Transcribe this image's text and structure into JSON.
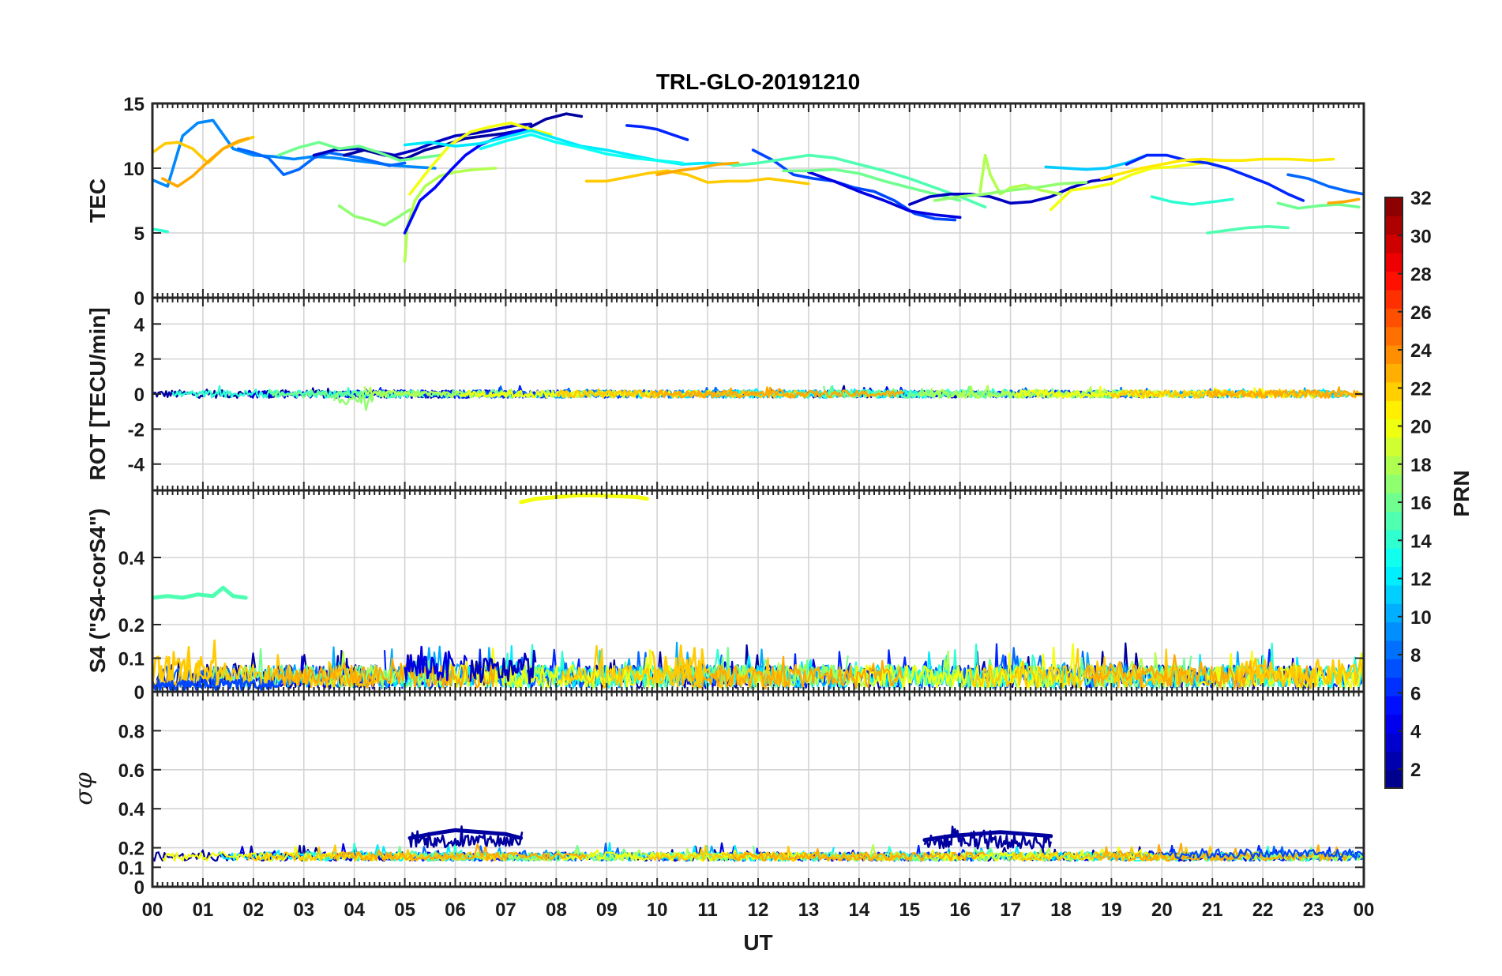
{
  "chart_data": {
    "type": "line",
    "title": "TRL-GLO-20191210",
    "xlabel": "UT",
    "x_range": [
      0,
      24
    ],
    "x_ticks": [
      "00",
      "01",
      "02",
      "03",
      "04",
      "05",
      "06",
      "07",
      "08",
      "09",
      "10",
      "11",
      "12",
      "13",
      "14",
      "15",
      "16",
      "17",
      "18",
      "19",
      "20",
      "21",
      "22",
      "23",
      "00"
    ],
    "grid": true,
    "colorbar": {
      "label": "PRN",
      "range": [
        1,
        32
      ],
      "ticks": [
        "2",
        "4",
        "6",
        "8",
        "10",
        "12",
        "14",
        "16",
        "18",
        "20",
        "22",
        "24",
        "26",
        "28",
        "30",
        "32"
      ],
      "colormap": "jet",
      "placement": "right"
    },
    "panels": [
      {
        "ylabel": "TEC",
        "ylim": [
          0,
          15
        ],
        "yticks": [
          "0",
          "5",
          "10",
          "15"
        ],
        "series": [
          {
            "prn": 9,
            "x": [
              0,
              0.3,
              0.6,
              0.9,
              1.2,
              1.6,
              2.0,
              2.4,
              2.8,
              3.2,
              3.6,
              4.0,
              4.4,
              4.8,
              5.2,
              5.6
            ],
            "values": [
              9.1,
              8.6,
              12.5,
              13.5,
              13.7,
              11.5,
              11.0,
              10.9,
              10.7,
              10.9,
              10.8,
              10.6,
              10.4,
              10.2,
              10.1,
              10.0
            ]
          },
          {
            "prn": 22,
            "x": [
              0,
              0.25,
              0.5,
              0.8,
              1.1,
              1.4,
              1.7,
              2.0
            ],
            "values": [
              11.2,
              11.9,
              12.0,
              11.5,
              10.4,
              11.5,
              12.0,
              12.4
            ]
          },
          {
            "prn": 23,
            "x": [
              0.2,
              0.5,
              0.8,
              1.1,
              1.4,
              1.7,
              1.9
            ],
            "values": [
              9.2,
              8.6,
              9.4,
              10.5,
              11.5,
              12.1,
              12.3
            ]
          },
          {
            "prn": 14,
            "x": [
              0,
              0.15,
              0.3
            ],
            "values": [
              5.3,
              5.2,
              5.1
            ]
          },
          {
            "prn": 8,
            "x": [
              1.7,
              2.0,
              2.3,
              2.6,
              2.9,
              3.2,
              3.5,
              3.8,
              4.1,
              4.4,
              4.7,
              5.0
            ],
            "values": [
              11.5,
              11.2,
              10.8,
              9.5,
              9.9,
              10.8,
              11.2,
              11.0,
              10.8,
              10.5,
              10.2,
              10.4
            ]
          },
          {
            "prn": 3,
            "x": [
              3.2,
              3.6,
              4.0,
              4.4,
              4.8,
              5.2,
              5.6,
              6.0,
              6.4,
              6.8,
              7.2,
              7.5
            ],
            "values": [
              11.0,
              11.4,
              11.5,
              11.3,
              11.0,
              11.4,
              12.0,
              12.5,
              12.7,
              13.0,
              13.3,
              13.4
            ]
          },
          {
            "prn": 2,
            "x": [
              3.8,
              4.2,
              4.6,
              5.0,
              5.4,
              5.8,
              6.2,
              6.6,
              7.0,
              7.4,
              7.8,
              8.2,
              8.5
            ],
            "values": [
              11.0,
              11.4,
              11.0,
              10.7,
              11.4,
              11.8,
              12.3,
              12.5,
              12.7,
              13.0,
              13.8,
              14.2,
              14.0
            ]
          },
          {
            "prn": 16,
            "x": [
              2.5,
              2.9,
              3.3,
              3.7,
              4.1,
              4.5,
              4.9,
              5.3,
              5.7
            ],
            "values": [
              11.0,
              11.6,
              12.0,
              11.5,
              11.7,
              11.2,
              10.6,
              10.8,
              11.0
            ]
          },
          {
            "prn": 17,
            "x": [
              3.7,
              4.0,
              4.3,
              4.6,
              4.9,
              5.1
            ],
            "values": [
              7.1,
              6.3,
              6.0,
              5.6,
              6.3,
              6.8
            ]
          },
          {
            "prn": 18,
            "x": [
              5.0,
              5.05,
              5.2,
              5.4,
              5.7,
              6.0,
              6.4,
              6.8
            ],
            "values": [
              2.8,
              5.5,
              7.5,
              8.6,
              9.4,
              9.7,
              9.9,
              10.0
            ]
          },
          {
            "prn": 5,
            "x": [
              5.0,
              5.3,
              5.6,
              5.9,
              6.2,
              6.5,
              6.8,
              7.1,
              7.4
            ],
            "values": [
              5.0,
              7.5,
              8.5,
              9.8,
              11.0,
              11.8,
              12.3,
              12.7,
              13.0
            ]
          },
          {
            "prn": 20,
            "x": [
              5.1,
              5.5,
              5.9,
              6.3,
              6.7,
              7.1,
              7.5,
              7.9
            ],
            "values": [
              8.0,
              10.0,
              11.8,
              12.8,
              13.2,
              13.5,
              13.0,
              12.6
            ]
          },
          {
            "prn": 12,
            "x": [
              5.0,
              5.5,
              6.0,
              6.5,
              7.0,
              7.5,
              8.0,
              8.5,
              9.0,
              9.5,
              10.0,
              10.5,
              11.0,
              11.5
            ],
            "values": [
              11.8,
              12.0,
              11.7,
              11.9,
              12.4,
              12.9,
              12.3,
              11.7,
              11.4,
              11.0,
              10.6,
              10.3,
              10.4,
              10.3
            ]
          },
          {
            "prn": 13,
            "x": [
              6.5,
              7.0,
              7.5,
              8.0,
              8.5,
              9.0,
              9.5,
              10.0,
              10.5
            ],
            "values": [
              11.5,
              12.1,
              12.6,
              12.0,
              11.6,
              11.1,
              10.8,
              10.6,
              10.4
            ]
          },
          {
            "prn": 6,
            "x": [
              9.4,
              9.7,
              10.0,
              10.3,
              10.6
            ],
            "values": [
              13.3,
              13.2,
              13.0,
              12.6,
              12.2
            ]
          },
          {
            "prn": 22,
            "x": [
              8.6,
              9.0,
              9.4,
              9.8,
              10.2,
              10.6,
              11.0,
              11.4,
              11.8,
              12.2,
              12.6,
              13.0
            ],
            "values": [
              9.0,
              9.0,
              9.3,
              9.6,
              9.8,
              9.5,
              8.9,
              9.0,
              9.0,
              9.2,
              9.0,
              8.8
            ]
          },
          {
            "prn": 23,
            "x": [
              10.0,
              10.4,
              10.8,
              11.2,
              11.6
            ],
            "values": [
              9.5,
              9.8,
              10.0,
              10.3,
              10.4
            ]
          },
          {
            "prn": 7,
            "x": [
              11.9,
              12.3,
              12.7,
              13.1,
              13.5,
              13.9,
              14.3,
              14.7,
              15.1,
              15.5,
              15.9
            ],
            "values": [
              11.4,
              10.6,
              9.5,
              9.2,
              9.0,
              8.5,
              8.2,
              7.5,
              6.5,
              6.1,
              6.0
            ]
          },
          {
            "prn": 4,
            "x": [
              13.0,
              13.5,
              14.0,
              14.5,
              15.0,
              15.5,
              16.0
            ],
            "values": [
              9.7,
              9.0,
              8.2,
              7.5,
              6.7,
              6.4,
              6.2
            ]
          },
          {
            "prn": 15,
            "x": [
              11.5,
              12.0,
              12.5,
              13.0,
              13.5,
              14.0,
              14.5,
              15.0,
              15.5,
              16.0,
              16.5
            ],
            "values": [
              10.2,
              10.4,
              10.7,
              11.0,
              10.8,
              10.3,
              9.8,
              9.2,
              8.5,
              7.8,
              7.0
            ]
          },
          {
            "prn": 16,
            "x": [
              12.5,
              13.0,
              13.5,
              14.0,
              14.5,
              15.0,
              15.5,
              16.0
            ],
            "values": [
              9.8,
              9.8,
              9.9,
              9.6,
              9.0,
              8.5,
              8.0,
              7.5
            ]
          },
          {
            "prn": 3,
            "x": [
              15.0,
              15.4,
              15.8,
              16.2,
              16.6,
              17.0,
              17.4,
              17.8,
              18.2,
              18.6,
              19.0
            ],
            "values": [
              7.2,
              7.8,
              8.0,
              8.0,
              7.8,
              7.3,
              7.4,
              7.8,
              8.5,
              9.0,
              9.2
            ]
          },
          {
            "prn": 18,
            "x": [
              16.4,
              16.5,
              16.6,
              16.8,
              17.0,
              17.3,
              17.6,
              18.0
            ],
            "values": [
              8.2,
              11.0,
              9.5,
              8.0,
              8.5,
              8.7,
              8.3,
              8.0
            ]
          },
          {
            "prn": 17,
            "x": [
              15.5,
              16.0,
              16.5,
              17.0,
              17.5,
              18.0,
              18.5
            ],
            "values": [
              7.5,
              7.8,
              8.0,
              8.3,
              8.5,
              8.8,
              8.9
            ]
          },
          {
            "prn": 11,
            "x": [
              17.7,
              18.1,
              18.5,
              18.9,
              19.3,
              19.7
            ],
            "values": [
              10.1,
              10.0,
              9.9,
              10.0,
              10.4,
              11.0
            ]
          },
          {
            "prn": 20,
            "x": [
              17.8,
              18.2,
              18.6,
              19.0,
              19.4,
              19.8,
              20.2,
              20.6,
              21.0
            ],
            "values": [
              6.8,
              8.3,
              8.5,
              8.8,
              9.5,
              10.0,
              10.1,
              10.3,
              10.5
            ]
          },
          {
            "prn": 6,
            "x": [
              19.3,
              19.7,
              20.1,
              20.5,
              20.9,
              21.3,
              21.7,
              22.1,
              22.5,
              22.8
            ],
            "values": [
              10.3,
              11.0,
              11.0,
              10.6,
              10.4,
              10.0,
              9.4,
              8.8,
              8.0,
              7.5
            ]
          },
          {
            "prn": 21,
            "x": [
              18.8,
              19.2,
              19.6,
              20.0,
              20.4,
              20.8,
              21.2,
              21.6,
              22.0,
              22.5,
              23.0,
              23.4
            ],
            "values": [
              9.2,
              9.6,
              10.0,
              10.3,
              10.6,
              10.7,
              10.6,
              10.6,
              10.7,
              10.7,
              10.6,
              10.7
            ]
          },
          {
            "prn": 14,
            "x": [
              19.8,
              20.2,
              20.6,
              21.0,
              21.4
            ],
            "values": [
              7.8,
              7.4,
              7.2,
              7.4,
              7.6
            ]
          },
          {
            "prn": 15,
            "x": [
              20.9,
              21.3,
              21.7,
              22.1,
              22.5
            ],
            "values": [
              5.0,
              5.2,
              5.4,
              5.5,
              5.4
            ]
          },
          {
            "prn": 8,
            "x": [
              22.5,
              22.9,
              23.3,
              23.7,
              24.0
            ],
            "values": [
              9.5,
              9.2,
              8.6,
              8.2,
              8.0
            ]
          },
          {
            "prn": 16,
            "x": [
              22.3,
              22.7,
              23.1,
              23.5,
              23.9
            ],
            "values": [
              7.3,
              6.9,
              7.1,
              7.2,
              7.0
            ]
          },
          {
            "prn": 23,
            "x": [
              23.3,
              23.6,
              23.9
            ],
            "values": [
              7.3,
              7.4,
              7.6
            ]
          }
        ]
      },
      {
        "ylabel": "ROT [TECU/min]",
        "ylim": [
          -5.5,
          5.5
        ],
        "yticks": [
          "-4",
          "-2",
          "0",
          "2",
          "4"
        ],
        "series_note": "all PRNs fluctuate within about ±0.5 around 0 over 00–24 UT; brief dips to about -0.8 near 03.6–04.4 UT"
      },
      {
        "ylabel": "S4 (\"S4-corS4\")",
        "ylim": [
          0,
          0.6
        ],
        "yticks": [
          "0",
          "0.1",
          "0.2",
          "0.4"
        ],
        "series": [
          {
            "prn": 20,
            "x": [
              7.3,
              7.6,
              8.0,
              8.4,
              8.8,
              9.2,
              9.6,
              9.8
            ],
            "values": [
              0.565,
              0.575,
              0.58,
              0.585,
              0.585,
              0.583,
              0.58,
              0.575
            ]
          },
          {
            "prn": 15,
            "x": [
              0,
              0.3,
              0.6,
              0.9,
              1.2,
              1.4,
              1.6,
              1.85
            ],
            "values": [
              0.28,
              0.285,
              0.28,
              0.29,
              0.285,
              0.31,
              0.285,
              0.28
            ]
          }
        ],
        "series_note": "all PRNs show noisy S4 values mostly 0.02–0.12 with spikes up to ~0.2 near 00.3 and 10.3 UT"
      },
      {
        "ylabel": "σφ",
        "ylim": [
          0,
          1
        ],
        "yticks": [
          "0",
          "0.1",
          "0.2",
          "0.4",
          "0.6",
          "0.8"
        ],
        "series": [
          {
            "prn": 2,
            "x": [
              5.1,
              5.5,
              6.0,
              6.5,
              7.0,
              7.3
            ],
            "values": [
              0.25,
              0.27,
              0.29,
              0.28,
              0.27,
              0.25
            ]
          },
          {
            "prn": 2,
            "x": [
              15.3,
              15.8,
              16.3,
              16.8,
              17.3,
              17.8
            ],
            "values": [
              0.24,
              0.26,
              0.27,
              0.28,
              0.27,
              0.26
            ]
          }
        ],
        "series_note": "all other PRNs fluctuate around 0.13–0.2"
      }
    ]
  }
}
